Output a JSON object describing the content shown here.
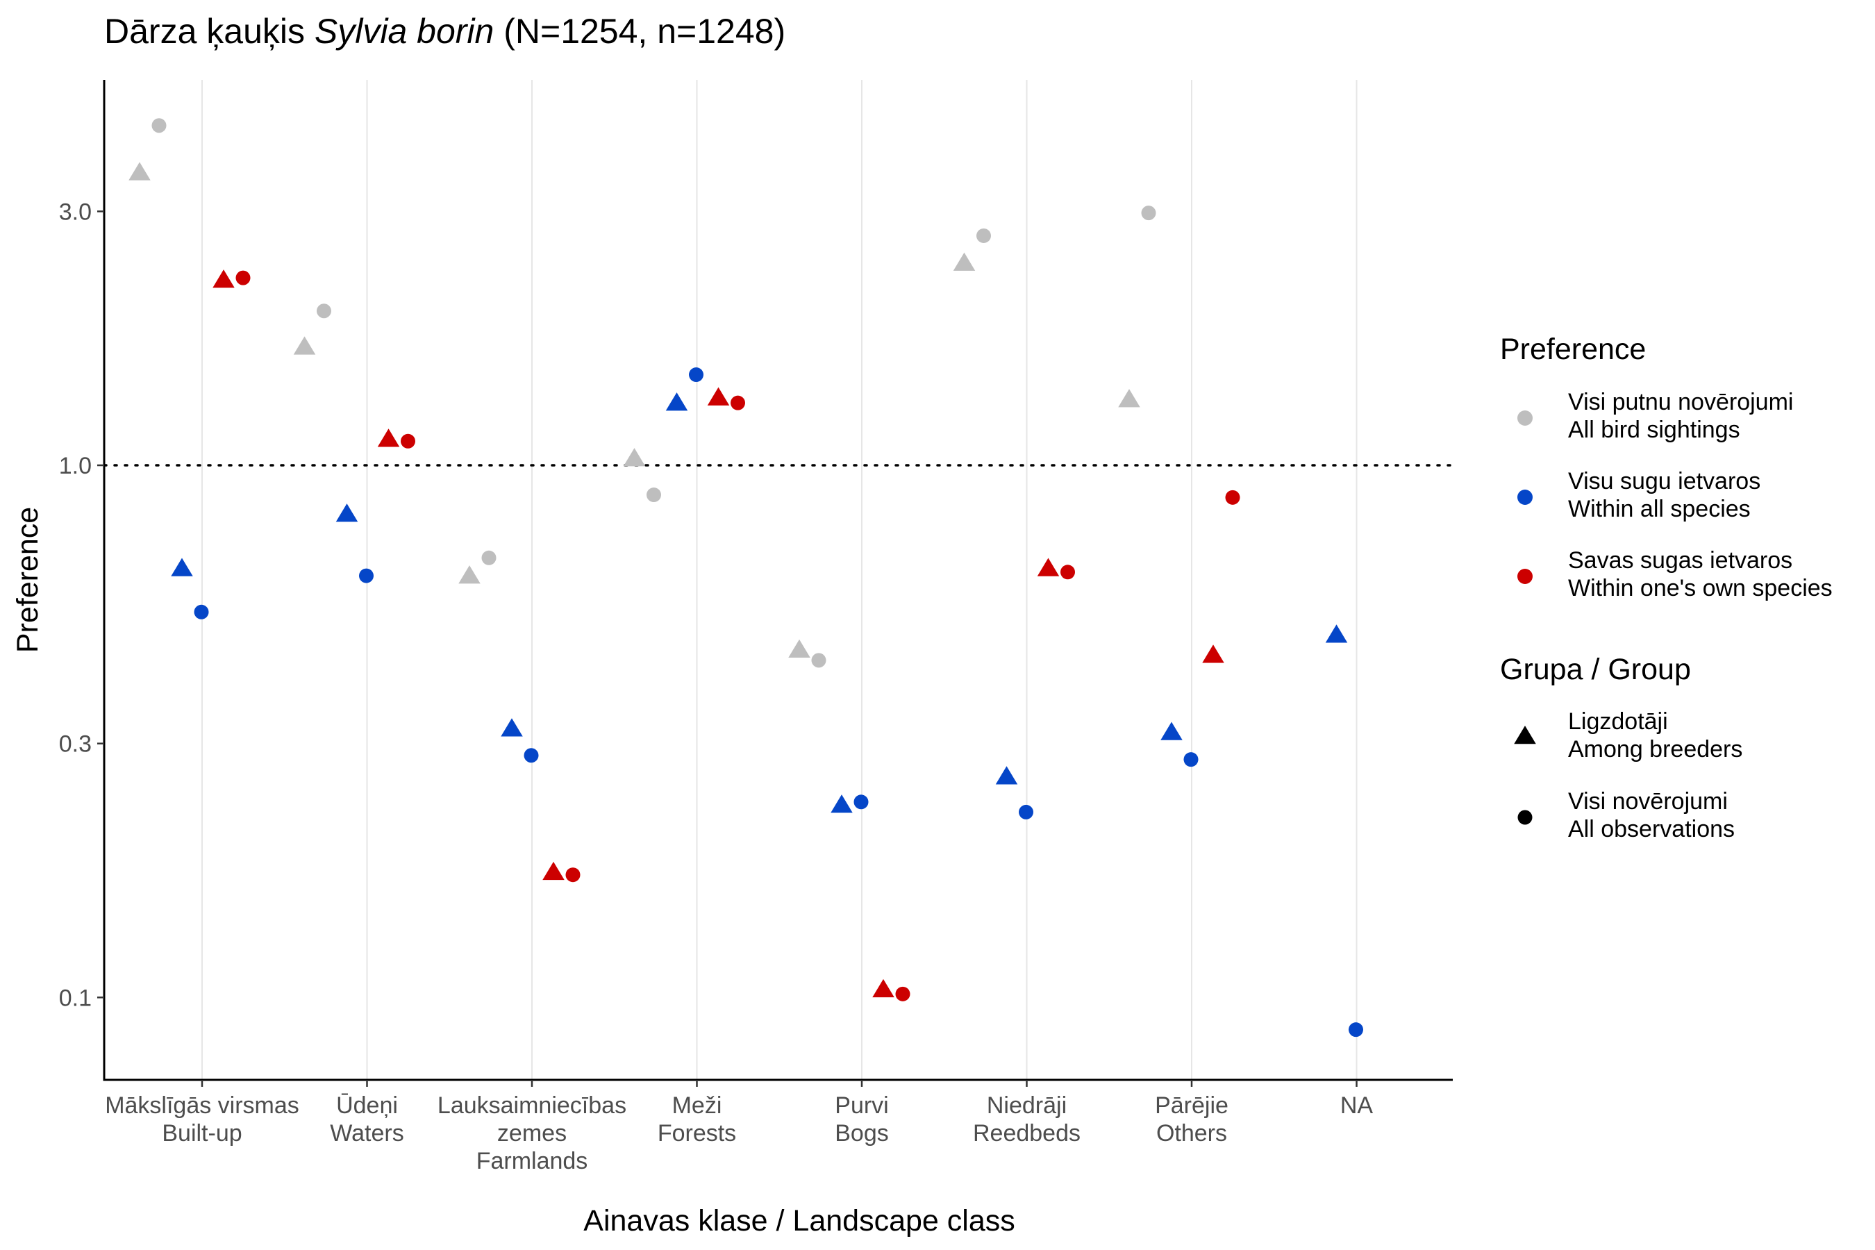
{
  "chart_data": {
    "type": "scatter",
    "title_prefix": "Dārza ķauķis",
    "title_species": "Sylvia borin",
    "title_suffix": "(N=1254, n=1248)",
    "xlabel": "Ainavas klase / Landscape class",
    "ylabel": "Preference",
    "y_scale": "log10",
    "ylim": [
      0.07,
      5.3
    ],
    "y_ticks": [
      0.1,
      0.3,
      1.0,
      3.0
    ],
    "y_tick_labels": [
      "0.1",
      "0.3",
      "1.0",
      "3.0"
    ],
    "reference_line": 1.0,
    "categories": [
      {
        "lines": [
          "Mākslīgās virsmas",
          "Built-up"
        ]
      },
      {
        "lines": [
          "Ūdeņi",
          "Waters"
        ]
      },
      {
        "lines": [
          "Lauksaimniecības",
          "zemes",
          "Farmlands"
        ]
      },
      {
        "lines": [
          "Meži",
          "Forests"
        ]
      },
      {
        "lines": [
          "Purvi",
          "Bogs"
        ]
      },
      {
        "lines": [
          "Niedrāji",
          "Reedbeds"
        ]
      },
      {
        "lines": [
          "Pārējie",
          "Others"
        ]
      },
      {
        "lines": [
          "NA"
        ]
      }
    ],
    "series": [
      {
        "key": "all_bird",
        "color": "#bebebe",
        "group": "breeders",
        "values": [
          3.55,
          1.67,
          0.62,
          1.03,
          0.45,
          2.4,
          1.33,
          null
        ]
      },
      {
        "key": "all_bird",
        "color": "#bebebe",
        "group": "all",
        "values": [
          4.35,
          1.95,
          0.67,
          0.88,
          0.43,
          2.7,
          2.98,
          null
        ]
      },
      {
        "key": "all_species",
        "color": "#0546c8",
        "group": "breeders",
        "values": [
          0.64,
          0.81,
          0.32,
          1.31,
          0.23,
          0.26,
          0.315,
          0.48
        ]
      },
      {
        "key": "all_species",
        "color": "#0546c8",
        "group": "all",
        "values": [
          0.53,
          0.62,
          0.285,
          1.48,
          0.233,
          0.223,
          0.28,
          0.087
        ]
      },
      {
        "key": "own_species",
        "color": "#cc0000",
        "group": "breeders",
        "values": [
          2.23,
          1.12,
          0.172,
          null,
          0.1035,
          0.64,
          0.44,
          null
        ]
      },
      {
        "key": "own_species",
        "color": "#cc0000",
        "group": "all",
        "values": [
          2.25,
          1.11,
          0.17,
          1.31,
          0.1015,
          0.63,
          0.87,
          null
        ]
      }
    ],
    "own_forest_breeders": 1.34,
    "legend": {
      "placement": "right",
      "preference_title": "Preference",
      "preference_items": [
        {
          "line1": "Visi putnu novērojumi",
          "line2": "All bird sightings",
          "color": "#bebebe"
        },
        {
          "line1": "Visu sugu ietvaros",
          "line2": "Within all species",
          "color": "#0546c8"
        },
        {
          "line1": "Savas sugas ietvaros",
          "line2": "Within one's own species",
          "color": "#cc0000"
        }
      ],
      "group_title": "Grupa / Group",
      "group_items": [
        {
          "line1": "Ligzdotāji",
          "line2": "Among breeders",
          "shape": "triangle"
        },
        {
          "line1": "Visi novērojumi",
          "line2": "All observations",
          "shape": "circle"
        }
      ]
    },
    "grid": {
      "major_x": true,
      "major_y": false
    }
  }
}
